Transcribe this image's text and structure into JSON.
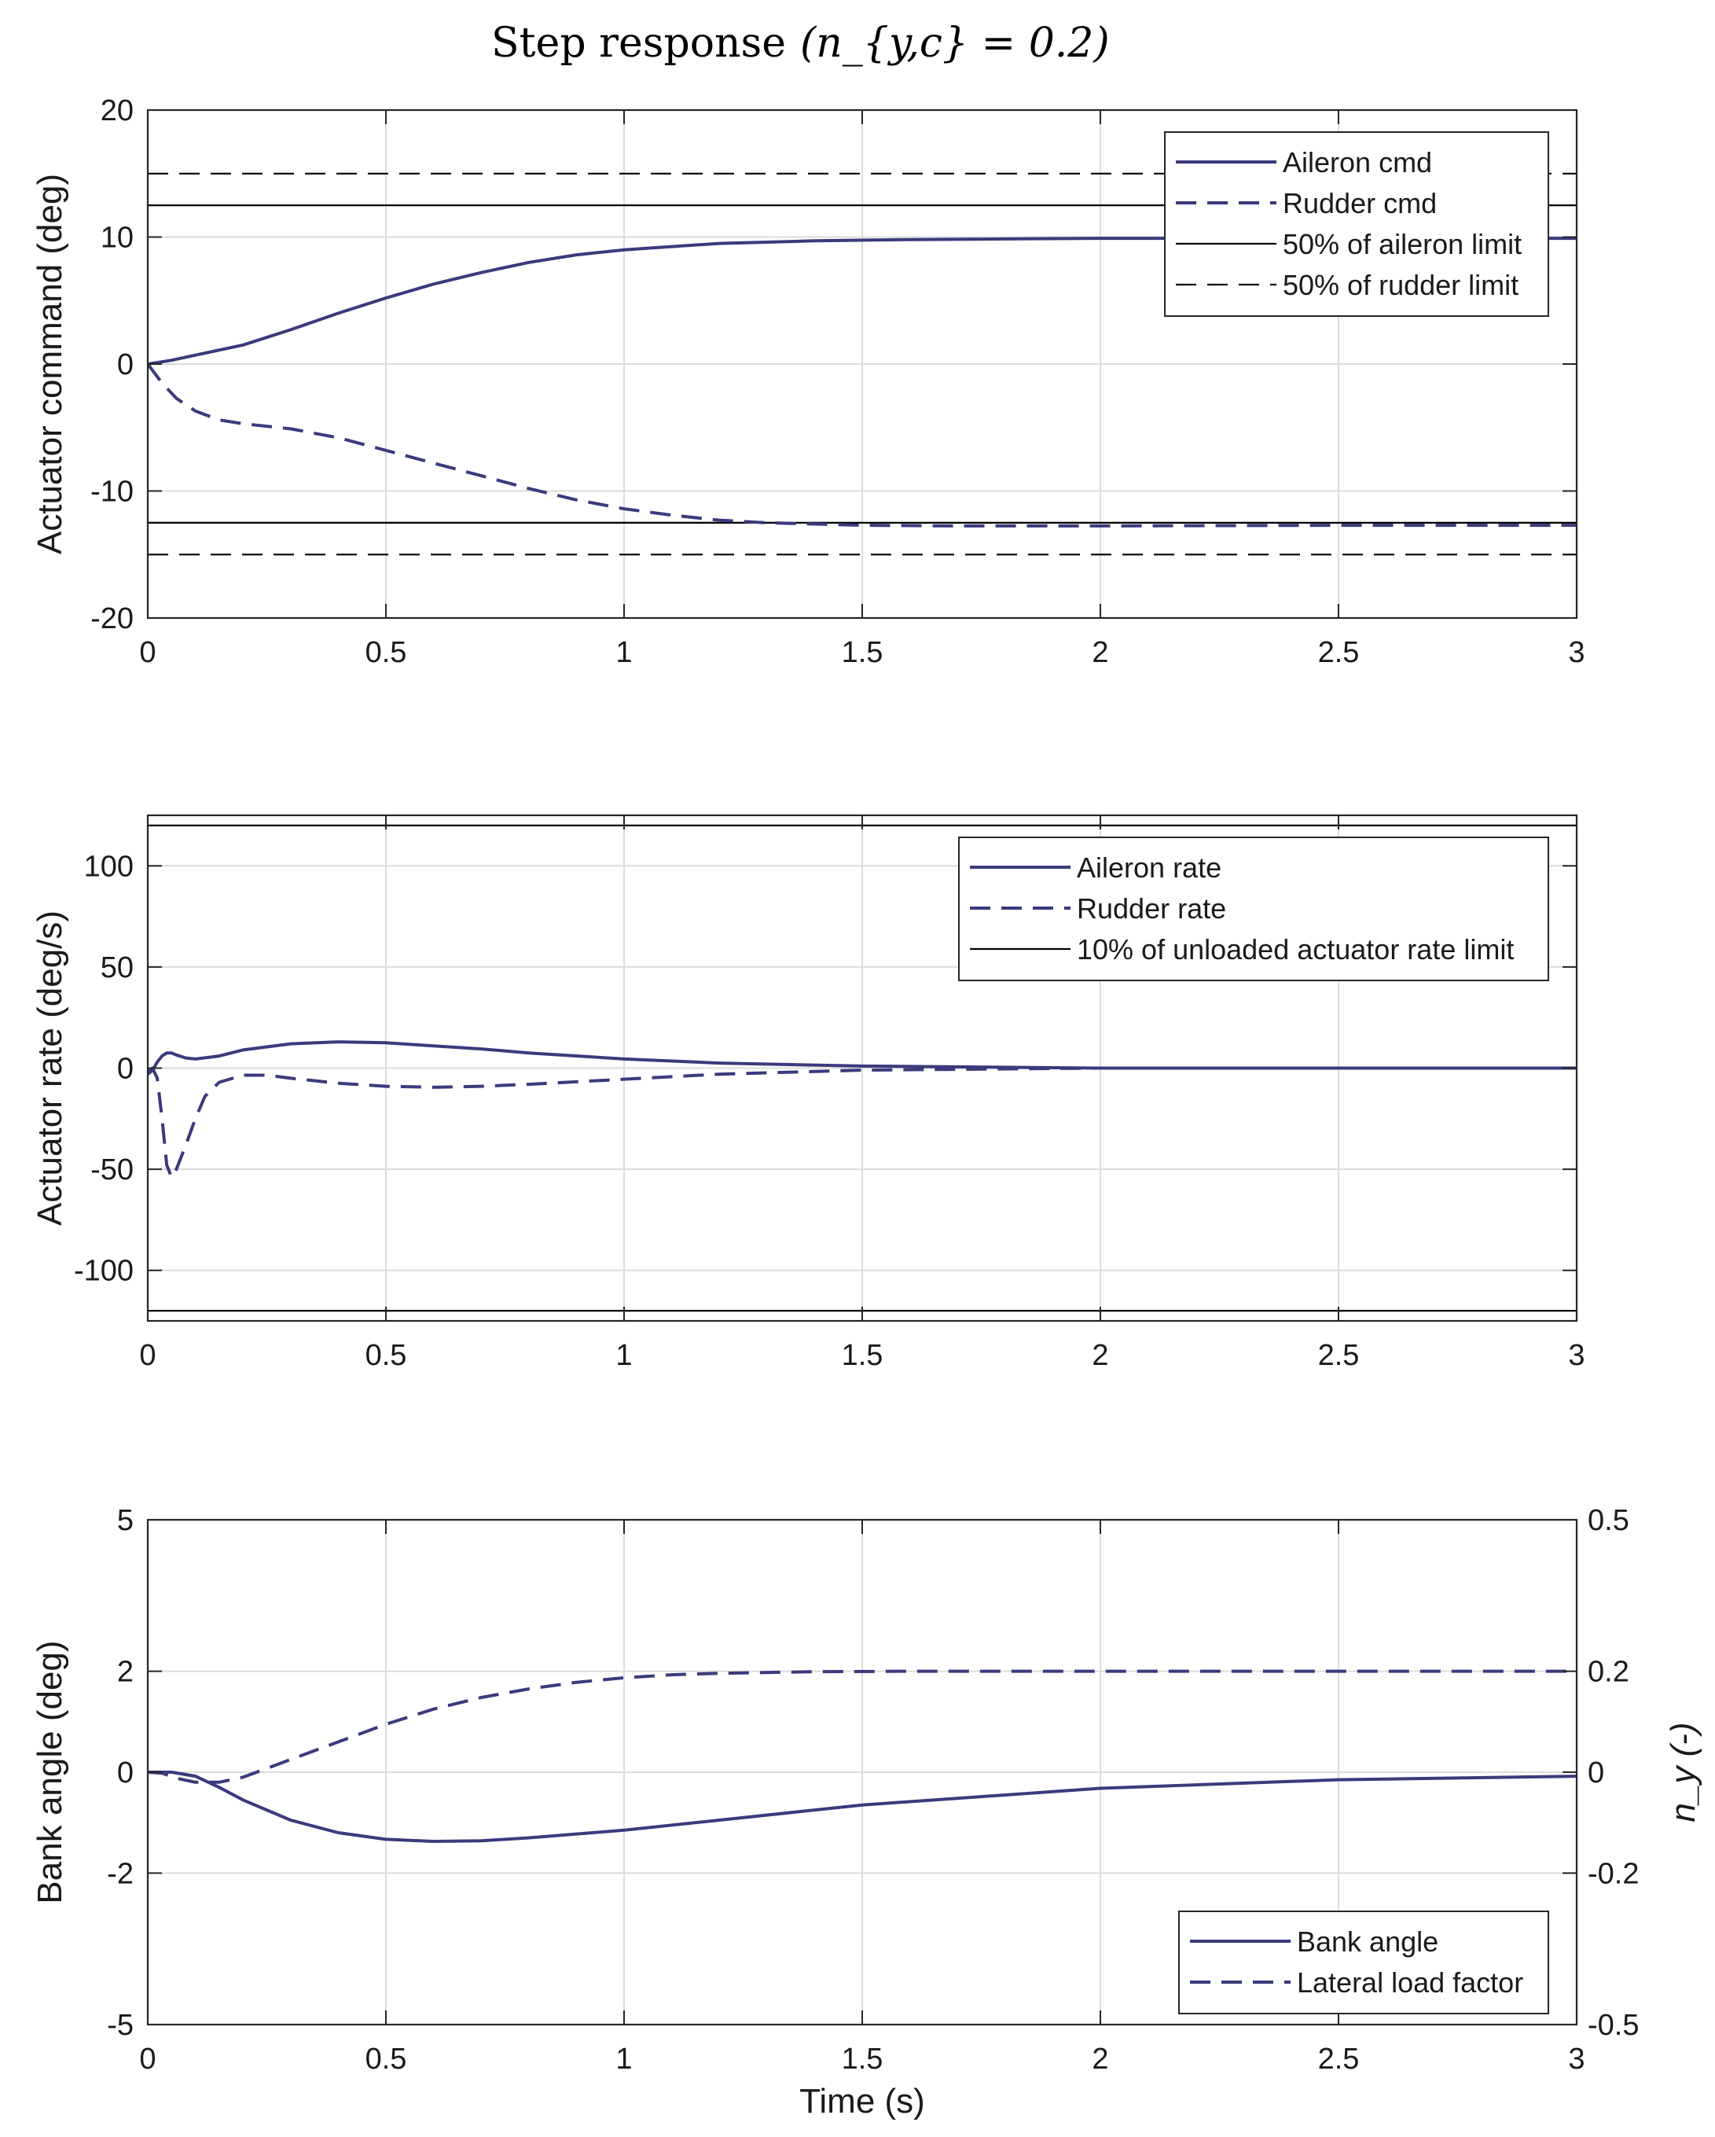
{
  "title": "Step response",
  "title_math": "(n_{y,c} = 0.2)",
  "colors": {
    "series": "#3a3a7c",
    "limit": "#000000",
    "grid": "#dcdcdc",
    "axis": "#262626"
  },
  "chart_data": [
    {
      "type": "line",
      "ylabel": "Actuator command (deg)",
      "xlim": [
        0,
        3
      ],
      "ylim": [
        -20,
        20
      ],
      "xticks": [
        0,
        0.5,
        1,
        1.5,
        2,
        2.5,
        3
      ],
      "xtick_labels": [
        "0",
        "0.5",
        "1",
        "1.5",
        "2",
        "2.5",
        "3"
      ],
      "yticks": [
        -20,
        -10,
        0,
        10,
        20
      ],
      "ytick_labels": [
        "-20",
        "-10",
        "0",
        "10",
        "20"
      ],
      "grid": true,
      "legend_position": "top-right",
      "series": [
        {
          "name": "Aileron cmd",
          "style": "solid",
          "role": "signal",
          "x": [
            0,
            0.05,
            0.1,
            0.2,
            0.3,
            0.4,
            0.5,
            0.6,
            0.7,
            0.8,
            0.9,
            1.0,
            1.2,
            1.4,
            1.6,
            1.8,
            2.0,
            2.5,
            3.0
          ],
          "y": [
            0,
            0.3,
            0.7,
            1.5,
            2.7,
            4.0,
            5.2,
            6.3,
            7.2,
            8.0,
            8.6,
            9.0,
            9.5,
            9.7,
            9.8,
            9.85,
            9.9,
            9.9,
            9.9
          ]
        },
        {
          "name": "Rudder cmd",
          "style": "dashed",
          "role": "signal",
          "x": [
            0,
            0.03,
            0.06,
            0.1,
            0.15,
            0.2,
            0.3,
            0.4,
            0.5,
            0.6,
            0.7,
            0.8,
            0.9,
            1.0,
            1.1,
            1.2,
            1.3,
            1.5,
            1.7,
            2.0,
            2.5,
            3.0
          ],
          "y": [
            0,
            -1.5,
            -2.7,
            -3.7,
            -4.4,
            -4.7,
            -5.1,
            -5.8,
            -6.8,
            -7.8,
            -8.8,
            -9.8,
            -10.7,
            -11.4,
            -11.9,
            -12.3,
            -12.5,
            -12.7,
            -12.75,
            -12.75,
            -12.7,
            -12.7
          ]
        },
        {
          "name": "50% of aileron limit",
          "style": "solid-thin",
          "role": "limit",
          "x": [
            0,
            3
          ],
          "y": [
            12.5,
            12.5
          ]
        },
        {
          "name": "50% of aileron limit",
          "style": "solid-thin",
          "role": "limit",
          "in_legend": false,
          "x": [
            0,
            3
          ],
          "y": [
            -12.5,
            -12.5
          ]
        },
        {
          "name": "50% of rudder limit",
          "style": "dashed-thin",
          "role": "limit",
          "x": [
            0,
            3
          ],
          "y": [
            15,
            15
          ]
        },
        {
          "name": "50% of rudder limit",
          "style": "dashed-thin",
          "role": "limit",
          "in_legend": false,
          "x": [
            0,
            3
          ],
          "y": [
            -15,
            -15
          ]
        }
      ]
    },
    {
      "type": "line",
      "ylabel": "Actuator rate (deg/s)",
      "xlim": [
        0,
        3
      ],
      "ylim": [
        -125,
        125
      ],
      "xticks": [
        0,
        0.5,
        1,
        1.5,
        2,
        2.5,
        3
      ],
      "xtick_labels": [
        "0",
        "0.5",
        "1",
        "1.5",
        "2",
        "2.5",
        "3"
      ],
      "yticks": [
        -100,
        -50,
        0,
        50,
        100
      ],
      "ytick_labels": [
        "-100",
        "-50",
        "0",
        "50",
        "100"
      ],
      "grid": true,
      "legend_position": "top-right",
      "series": [
        {
          "name": "Aileron rate",
          "style": "solid",
          "role": "signal",
          "x": [
            0,
            0.01,
            0.02,
            0.03,
            0.04,
            0.05,
            0.06,
            0.08,
            0.1,
            0.15,
            0.2,
            0.3,
            0.4,
            0.5,
            0.6,
            0.7,
            0.8,
            1.0,
            1.2,
            1.5,
            2.0,
            3.0
          ],
          "y": [
            -3,
            -1,
            3,
            6,
            7.5,
            7.5,
            6.5,
            5,
            4.5,
            6,
            9,
            12,
            13,
            12.5,
            11,
            9.5,
            7.5,
            4.5,
            2.5,
            1,
            0,
            0
          ]
        },
        {
          "name": "Rudder rate",
          "style": "dashed",
          "role": "signal",
          "x": [
            0,
            0.01,
            0.02,
            0.03,
            0.04,
            0.05,
            0.06,
            0.08,
            0.1,
            0.12,
            0.15,
            0.2,
            0.25,
            0.3,
            0.4,
            0.5,
            0.6,
            0.7,
            0.8,
            1.0,
            1.2,
            1.5,
            2.0,
            3.0
          ],
          "y": [
            -2,
            0,
            -5,
            -25,
            -48,
            -54,
            -50,
            -38,
            -25,
            -14,
            -7,
            -3.5,
            -3.5,
            -5,
            -7.5,
            -9,
            -9.5,
            -9,
            -8,
            -5.5,
            -3,
            -1,
            0,
            0
          ]
        },
        {
          "name": "10% of unloaded actuator rate limit",
          "style": "solid-thin",
          "role": "limit",
          "x": [
            0,
            3
          ],
          "y": [
            120,
            120
          ]
        },
        {
          "name": "10% of unloaded actuator rate limit",
          "style": "solid-thin",
          "role": "limit",
          "in_legend": false,
          "x": [
            0,
            3
          ],
          "y": [
            -120,
            -120
          ]
        }
      ]
    },
    {
      "type": "line",
      "ylabel": "Bank angle (deg)",
      "y2label": "n_y (-)",
      "xlabel": "Time (s)",
      "xlim": [
        0,
        3
      ],
      "ylim": [
        -5,
        5
      ],
      "y2lim": [
        -0.5,
        0.5
      ],
      "xticks": [
        0,
        0.5,
        1,
        1.5,
        2,
        2.5,
        3
      ],
      "xtick_labels": [
        "0",
        "0.5",
        "1",
        "1.5",
        "2",
        "2.5",
        "3"
      ],
      "yticks": [
        -5,
        -2,
        0,
        2,
        5
      ],
      "ytick_labels": [
        "-5",
        "-2",
        "0",
        "2",
        "5"
      ],
      "y2ticks": [
        -0.5,
        -0.2,
        0,
        0.2,
        0.5
      ],
      "y2tick_labels": [
        "-0.5",
        "-0.2",
        "0",
        "0.2",
        "0.5"
      ],
      "grid": true,
      "legend_position": "bottom-right",
      "series": [
        {
          "name": "Bank angle",
          "style": "solid",
          "role": "signal",
          "axis": "left",
          "x": [
            0,
            0.05,
            0.1,
            0.15,
            0.2,
            0.3,
            0.4,
            0.5,
            0.6,
            0.7,
            0.8,
            1.0,
            1.2,
            1.5,
            2.0,
            2.5,
            3.0
          ],
          "y": [
            0,
            0,
            -0.08,
            -0.3,
            -0.55,
            -0.95,
            -1.2,
            -1.33,
            -1.37,
            -1.36,
            -1.3,
            -1.15,
            -0.95,
            -0.65,
            -0.32,
            -0.15,
            -0.08
          ]
        },
        {
          "name": "Lateral load factor",
          "style": "dashed",
          "role": "signal",
          "axis": "right",
          "x": [
            0,
            0.03,
            0.06,
            0.1,
            0.15,
            0.2,
            0.3,
            0.4,
            0.5,
            0.6,
            0.7,
            0.8,
            0.9,
            1.0,
            1.1,
            1.2,
            1.4,
            1.6,
            2.0,
            3.0
          ],
          "y": [
            0,
            -0.002,
            -0.012,
            -0.02,
            -0.02,
            -0.01,
            0.025,
            0.06,
            0.095,
            0.125,
            0.148,
            0.165,
            0.178,
            0.187,
            0.193,
            0.196,
            0.199,
            0.2,
            0.2,
            0.2
          ]
        }
      ]
    }
  ]
}
